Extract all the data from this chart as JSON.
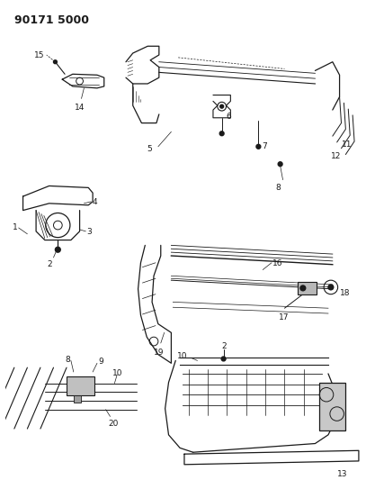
{
  "title": "90171 5000",
  "bg": "#ffffff",
  "lc": "#1a1a1a",
  "figsize": [
    4.07,
    5.33
  ],
  "dpi": 100
}
